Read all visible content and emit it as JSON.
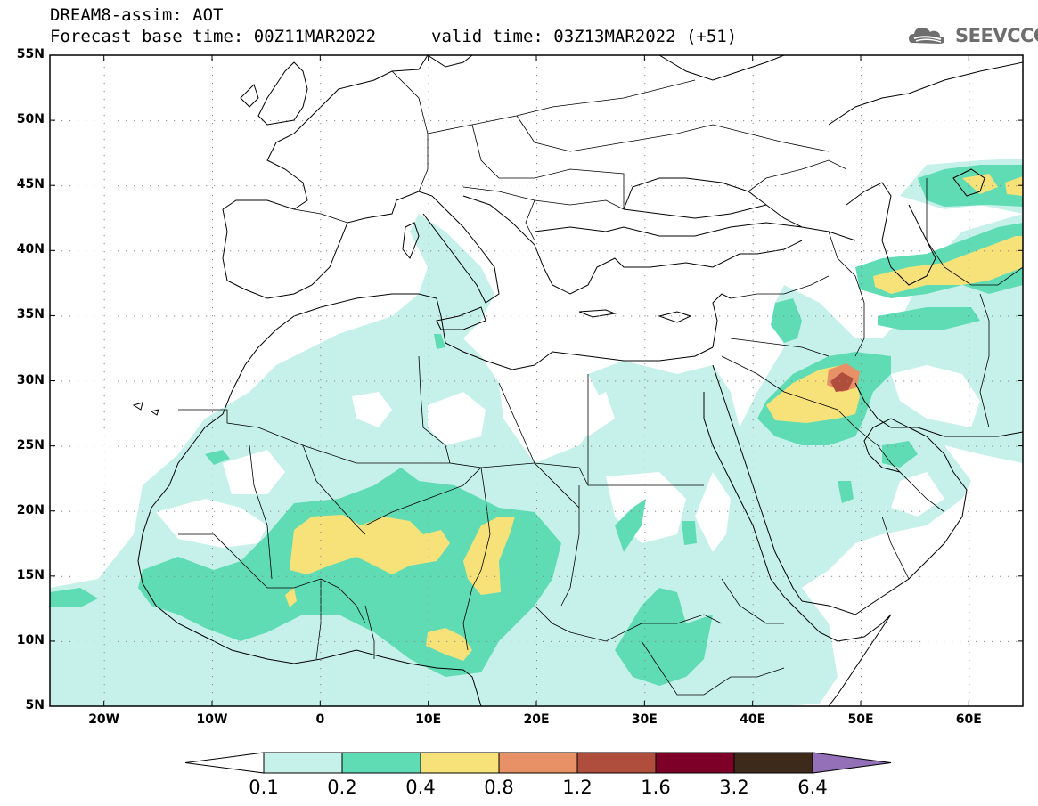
{
  "header": {
    "title": "DREAM8-assim: AOT",
    "base_time": "Forecast base time: 00Z11MAR2022",
    "valid_time": "valid time: 03Z13MAR2022 (+51)",
    "logo_text": "SEEVCCC"
  },
  "map": {
    "lon_range": [
      -25,
      65
    ],
    "lat_range": [
      5,
      55
    ],
    "lat_ticks": [
      "55N",
      "50N",
      "45N",
      "40N",
      "35N",
      "30N",
      "25N",
      "20N",
      "15N",
      "10N",
      "5N"
    ],
    "lon_ticks": [
      "20W",
      "10W",
      "0",
      "10E",
      "20E",
      "30E",
      "40E",
      "50E",
      "60E"
    ]
  },
  "legend": {
    "levels": [
      "0.1",
      "0.2",
      "0.4",
      "0.8",
      "1.2",
      "1.6",
      "3.2",
      "6.4"
    ],
    "colors": [
      "#c6f1ea",
      "#5fdcb4",
      "#f7e27a",
      "#e89066",
      "#b04e3e",
      "#7c0028",
      "#3d2a1a",
      "#9370b8"
    ]
  }
}
